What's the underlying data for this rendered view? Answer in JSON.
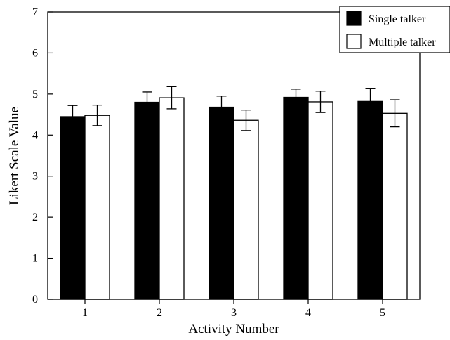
{
  "chart_data": {
    "type": "bar",
    "title": "",
    "xlabel": "Activity Number",
    "ylabel": "Likert Scale Value",
    "ylim": [
      0,
      7
    ],
    "yticks": [
      0,
      1,
      2,
      3,
      4,
      5,
      6,
      7
    ],
    "categories": [
      "1",
      "2",
      "3",
      "4",
      "5"
    ],
    "grid": false,
    "legend_position": "top-right",
    "series": [
      {
        "name": "Single talker",
        "color": "#000000",
        "values": [
          4.45,
          4.8,
          4.68,
          4.92,
          4.82
        ],
        "errors": [
          0.27,
          0.25,
          0.27,
          0.2,
          0.32
        ]
      },
      {
        "name": "Multiple talker",
        "color": "#ffffff",
        "values": [
          4.48,
          4.91,
          4.36,
          4.81,
          4.53
        ],
        "errors": [
          0.25,
          0.27,
          0.25,
          0.26,
          0.33
        ]
      }
    ]
  }
}
